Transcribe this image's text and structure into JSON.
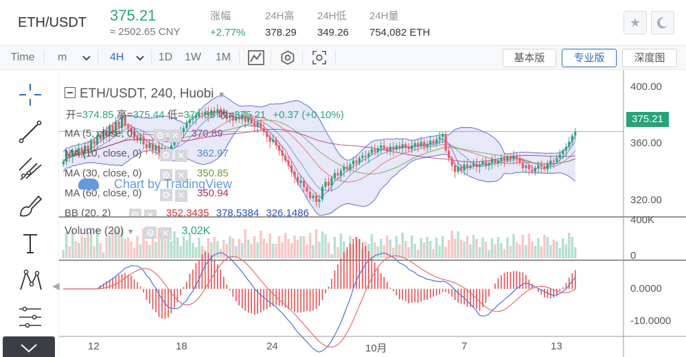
{
  "header": {
    "pair": "ETH/USDT",
    "price": "375.21",
    "cny": "≈ 2502.65 CNY",
    "stats": [
      {
        "label": "涨幅",
        "value": "+2.77%",
        "up": true
      },
      {
        "label": "24H高",
        "value": "378.29",
        "up": false
      },
      {
        "label": "24H低",
        "value": "349.26",
        "up": false
      },
      {
        "label": "24H量",
        "value": "754,082 ETH",
        "up": false
      }
    ]
  },
  "toolbar": {
    "time_label": "Time",
    "unit_select": "m",
    "interval": "4H",
    "intervals": [
      "1D",
      "1W",
      "1M"
    ],
    "views": [
      "基本版",
      "专业版",
      "深度图"
    ],
    "active_view": "专业版"
  },
  "colors": {
    "up": "#27a37a",
    "down": "#ee5a5c",
    "accent": "#2a6dc5",
    "band": "#7c7fd6"
  },
  "chart_data": {
    "type": "candlestick",
    "title": "ETH/USDT, 240, Huobi",
    "ohlc_legend": {
      "o_label": "开=",
      "o": "374.85",
      "h_label": "高=",
      "h": "375.44",
      "l_label": "低=",
      "l": "374.63",
      "c_label": "收=",
      "c": "375.21",
      "change": "+0.37 (+0.10%)"
    },
    "indicators": [
      {
        "name": "MA (5, close, 0)",
        "value": "370.89",
        "color": "#9547ad"
      },
      {
        "name": "MA (10, close, 0)",
        "value": "362.97",
        "color": "#5a86c4"
      },
      {
        "name": "MA (30, close, 0)",
        "value": "350.85",
        "color": "#6a9c35"
      },
      {
        "name": "MA (60, close, 0)",
        "value": "350.94",
        "color": "#b0286f"
      },
      {
        "name": "BB (20, 2)",
        "values": [
          "352.3435",
          "378.5384",
          "326.1486"
        ],
        "colors": [
          "#e02c2c",
          "#2a4fc9",
          "#2a4fc9"
        ]
      }
    ],
    "watermark": "Chart by TradingView",
    "price_axis": {
      "ticks": [
        "400.00",
        "360.00",
        "320.00"
      ],
      "tick_values": [
        400,
        360,
        320
      ],
      "current": "375.21",
      "range": [
        308,
        420
      ]
    },
    "volume": {
      "label": "Volume (20)",
      "value": "3.02K",
      "ticks": [
        "400K",
        "0"
      ]
    },
    "macd": {
      "ticks": [
        "0.0000",
        "-10.0000"
      ],
      "tick_values": [
        0,
        -10
      ],
      "range": [
        -12,
        8
      ]
    },
    "x_labels": [
      "12",
      "18",
      "24",
      "10月",
      "7",
      "13"
    ],
    "closes": [
      351,
      357,
      355,
      360,
      357,
      362,
      358,
      364,
      360,
      368,
      365,
      372,
      369,
      376,
      372,
      380,
      374,
      383,
      378,
      386,
      380,
      378,
      375,
      372,
      368,
      371,
      365,
      362,
      366,
      360,
      364,
      358,
      362,
      356,
      360,
      364,
      368,
      372,
      375,
      378,
      382,
      385,
      386,
      388,
      390,
      389,
      391,
      388,
      392,
      390,
      393,
      391,
      389,
      386,
      388,
      384,
      387,
      385,
      388,
      383,
      386,
      382,
      379,
      382,
      378,
      375,
      371,
      367,
      369,
      364,
      360,
      356,
      352,
      348,
      343,
      339,
      334,
      336,
      331,
      327,
      322,
      324,
      319,
      321,
      331,
      335,
      332,
      338,
      342,
      340,
      344,
      347,
      345,
      349,
      352,
      350,
      354,
      356,
      355,
      358,
      361,
      359,
      362,
      364,
      362,
      360,
      363,
      361,
      364,
      362,
      365,
      363,
      361,
      364,
      366,
      364,
      367,
      363,
      365,
      368,
      366,
      369,
      371,
      373,
      360,
      354,
      348,
      343,
      347,
      344,
      349,
      346,
      348,
      350,
      347,
      349,
      351,
      348,
      350,
      353,
      350,
      352,
      354,
      352,
      355,
      353,
      356,
      354,
      350,
      346,
      348,
      345,
      343,
      346,
      348,
      347,
      345,
      349,
      352,
      351,
      354,
      357,
      360,
      363,
      367,
      372,
      375
    ]
  }
}
